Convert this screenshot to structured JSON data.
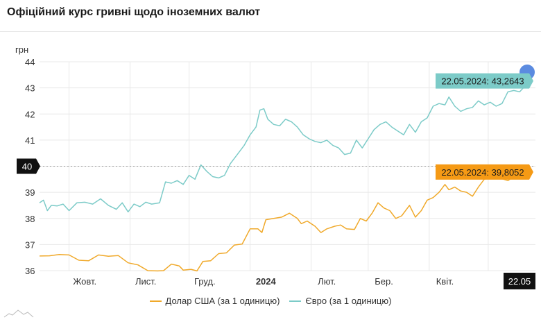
{
  "title": "Офіційний курс гривні щодо іноземних валют",
  "chart_data": {
    "type": "line",
    "ylabel": "грн",
    "ylim": [
      36,
      44
    ],
    "yticks": [
      "36",
      "37",
      "38",
      "39",
      "40",
      "41",
      "42",
      "43",
      "44"
    ],
    "xticks": [
      {
        "label": "Жовт.",
        "bold": false,
        "day": 8
      },
      {
        "label": "Лист.",
        "bold": false,
        "day": 39
      },
      {
        "label": "Груд.",
        "bold": false,
        "day": 69
      },
      {
        "label": "2024",
        "bold": true,
        "day": 100
      },
      {
        "label": "Лют.",
        "bold": false,
        "day": 131
      },
      {
        "label": "Бер.",
        "bold": false,
        "day": 160
      },
      {
        "label": "Квіт.",
        "bold": false,
        "day": 191
      }
    ],
    "x_range": [
      -15,
      237
    ],
    "grid_days": [
      0,
      31,
      61,
      92,
      123,
      152,
      183,
      213
    ],
    "crosshair_value": 40,
    "crosshair_label": "40",
    "end_date_label": "22.05",
    "series": [
      {
        "name": "Долар США (за 1 одиницю)",
        "color": "#f0a92a",
        "end_label": "22.05.2024: 39,8052",
        "points": [
          [
            -15,
            36.56
          ],
          [
            -10,
            36.57
          ],
          [
            -5,
            36.62
          ],
          [
            0,
            36.6
          ],
          [
            5,
            36.4
          ],
          [
            10,
            36.38
          ],
          [
            15,
            36.6
          ],
          [
            20,
            36.55
          ],
          [
            25,
            36.58
          ],
          [
            30,
            36.3
          ],
          [
            35,
            36.22
          ],
          [
            40,
            36.0
          ],
          [
            45,
            35.99
          ],
          [
            48,
            36.0
          ],
          [
            52,
            36.25
          ],
          [
            56,
            36.18
          ],
          [
            58,
            36.02
          ],
          [
            62,
            36.05
          ],
          [
            65,
            35.99
          ],
          [
            68,
            36.35
          ],
          [
            72,
            36.38
          ],
          [
            76,
            36.65
          ],
          [
            80,
            36.68
          ],
          [
            84,
            36.98
          ],
          [
            88,
            37.02
          ],
          [
            92,
            37.6
          ],
          [
            96,
            37.6
          ],
          [
            98,
            37.46
          ],
          [
            100,
            37.95
          ],
          [
            104,
            38.0
          ],
          [
            108,
            38.05
          ],
          [
            112,
            38.2
          ],
          [
            116,
            38.0
          ],
          [
            118,
            37.8
          ],
          [
            121,
            37.9
          ],
          [
            125,
            37.7
          ],
          [
            128,
            37.46
          ],
          [
            131,
            37.6
          ],
          [
            135,
            37.7
          ],
          [
            138,
            37.75
          ],
          [
            141,
            37.6
          ],
          [
            145,
            37.58
          ],
          [
            148,
            38.0
          ],
          [
            151,
            37.9
          ],
          [
            154,
            38.2
          ],
          [
            157,
            38.6
          ],
          [
            160,
            38.4
          ],
          [
            163,
            38.3
          ],
          [
            166,
            38.0
          ],
          [
            169,
            38.1
          ],
          [
            173,
            38.5
          ],
          [
            176,
            38.05
          ],
          [
            179,
            38.3
          ],
          [
            182,
            38.7
          ],
          [
            185,
            38.8
          ],
          [
            188,
            39.0
          ],
          [
            191,
            39.3
          ],
          [
            193,
            39.1
          ],
          [
            196,
            39.2
          ],
          [
            199,
            39.05
          ],
          [
            202,
            39.0
          ],
          [
            205,
            38.85
          ],
          [
            208,
            39.2
          ],
          [
            211,
            39.5
          ],
          [
            214,
            39.55
          ],
          [
            217,
            39.6
          ],
          [
            220,
            39.52
          ],
          [
            223,
            39.45
          ],
          [
            226,
            39.6
          ],
          [
            229,
            39.75
          ],
          [
            234,
            39.8052
          ]
        ]
      },
      {
        "name": "Євро (за 1 одиницю)",
        "color": "#7ccbc8",
        "end_label": "22.05.2024: 43,2643",
        "points": [
          [
            -15,
            38.6
          ],
          [
            -13,
            38.7
          ],
          [
            -11,
            38.3
          ],
          [
            -9,
            38.5
          ],
          [
            -6,
            38.48
          ],
          [
            -3,
            38.55
          ],
          [
            0,
            38.3
          ],
          [
            4,
            38.6
          ],
          [
            8,
            38.62
          ],
          [
            12,
            38.55
          ],
          [
            16,
            38.75
          ],
          [
            20,
            38.5
          ],
          [
            24,
            38.35
          ],
          [
            27,
            38.6
          ],
          [
            30,
            38.25
          ],
          [
            33,
            38.55
          ],
          [
            36,
            38.45
          ],
          [
            39,
            38.62
          ],
          [
            42,
            38.55
          ],
          [
            46,
            38.6
          ],
          [
            49,
            39.4
          ],
          [
            52,
            39.35
          ],
          [
            55,
            39.45
          ],
          [
            58,
            39.3
          ],
          [
            61,
            39.65
          ],
          [
            64,
            39.5
          ],
          [
            67,
            40.05
          ],
          [
            70,
            39.8
          ],
          [
            73,
            39.6
          ],
          [
            76,
            39.55
          ],
          [
            79,
            39.65
          ],
          [
            82,
            40.1
          ],
          [
            86,
            40.5
          ],
          [
            89,
            40.8
          ],
          [
            92,
            41.2
          ],
          [
            95,
            41.5
          ],
          [
            97,
            42.15
          ],
          [
            99,
            42.2
          ],
          [
            101,
            41.8
          ],
          [
            104,
            41.6
          ],
          [
            107,
            41.55
          ],
          [
            110,
            41.8
          ],
          [
            113,
            41.7
          ],
          [
            116,
            41.5
          ],
          [
            119,
            41.2
          ],
          [
            122,
            41.05
          ],
          [
            125,
            40.95
          ],
          [
            128,
            40.9
          ],
          [
            131,
            41.0
          ],
          [
            134,
            40.8
          ],
          [
            137,
            40.7
          ],
          [
            140,
            40.45
          ],
          [
            143,
            40.5
          ],
          [
            146,
            41.0
          ],
          [
            149,
            40.7
          ],
          [
            152,
            41.05
          ],
          [
            155,
            41.4
          ],
          [
            158,
            41.6
          ],
          [
            161,
            41.7
          ],
          [
            164,
            41.5
          ],
          [
            167,
            41.35
          ],
          [
            170,
            41.2
          ],
          [
            173,
            41.6
          ],
          [
            176,
            41.3
          ],
          [
            179,
            41.7
          ],
          [
            182,
            41.85
          ],
          [
            185,
            42.3
          ],
          [
            188,
            42.4
          ],
          [
            191,
            42.35
          ],
          [
            193,
            42.65
          ],
          [
            196,
            42.3
          ],
          [
            199,
            42.1
          ],
          [
            202,
            42.2
          ],
          [
            205,
            42.25
          ],
          [
            208,
            42.5
          ],
          [
            211,
            42.35
          ],
          [
            214,
            42.45
          ],
          [
            217,
            42.3
          ],
          [
            220,
            42.4
          ],
          [
            223,
            42.85
          ],
          [
            226,
            42.9
          ],
          [
            229,
            42.85
          ],
          [
            234,
            43.2643
          ]
        ]
      }
    ]
  }
}
